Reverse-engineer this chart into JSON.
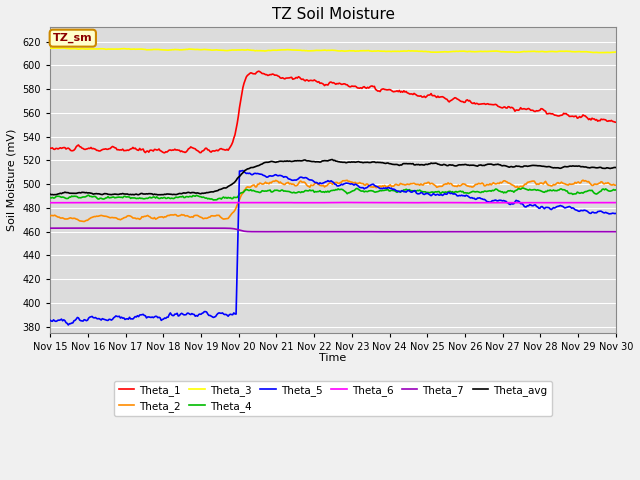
{
  "title": "TZ Soil Moisture",
  "xlabel": "Time",
  "ylabel": "Soil Moisture (mV)",
  "ylim": [
    375,
    632
  ],
  "yticks": [
    380,
    400,
    420,
    440,
    460,
    480,
    500,
    520,
    540,
    560,
    580,
    600,
    620
  ],
  "x_labels": [
    "Nov 15",
    "Nov 16",
    "Nov 17",
    "Nov 18",
    "Nov 19",
    "Nov 20",
    "Nov 21",
    "Nov 22",
    "Nov 23",
    "Nov 24",
    "Nov 25",
    "Nov 26",
    "Nov 27",
    "Nov 28",
    "Nov 29",
    "Nov 30"
  ],
  "num_points": 500,
  "annotation_label": "TZ_sm",
  "plot_bg_color": "#dcdcdc",
  "fig_bg_color": "#f0f0f0",
  "colors": {
    "Theta_1": "#ff0000",
    "Theta_2": "#ff8c00",
    "Theta_3": "#ffff00",
    "Theta_4": "#00bb00",
    "Theta_5": "#0000ff",
    "Theta_6": "#ff00ff",
    "Theta_7": "#9900bb",
    "Theta_avg": "#000000"
  },
  "linewidth": 1.2,
  "grid_color": "#ffffff",
  "title_fontsize": 11,
  "tick_fontsize": 7,
  "axis_label_fontsize": 8
}
